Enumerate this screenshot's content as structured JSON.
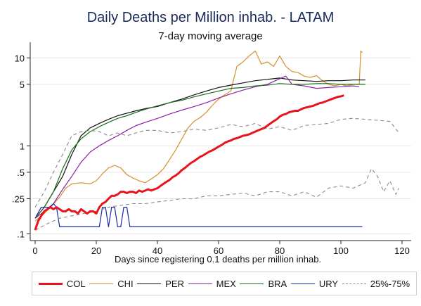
{
  "chart_data": {
    "type": "line",
    "title": "Daily Deaths per Million inhab. - LATAM",
    "subtitle": "7-day moving average",
    "xlabel": "Days since registering 0.1 deaths per million inhab.",
    "ylabel": "",
    "y_scale": "log",
    "xlim": [
      0,
      120
    ],
    "ylim": [
      0.09,
      14
    ],
    "x_ticks": [
      0,
      20,
      40,
      60,
      80,
      100,
      120
    ],
    "y_ticks": [
      {
        "value": 10,
        "label": "10"
      },
      {
        "value": 5,
        "label": "5"
      },
      {
        "value": 1,
        "label": "1"
      },
      {
        "value": 0.5,
        "label": ".5"
      },
      {
        "value": 0.25,
        "label": ".25"
      },
      {
        "value": 0.1,
        "label": ".1"
      }
    ],
    "grid": true,
    "legend_position": "bottom",
    "series": [
      {
        "name": "COL",
        "color": "#e8141c",
        "width": 3,
        "dash": "",
        "x": [
          0,
          1,
          2,
          3,
          4,
          5,
          6,
          7,
          8,
          9,
          10,
          11,
          12,
          13,
          14,
          15,
          16,
          17,
          18,
          19,
          20,
          21,
          22,
          23,
          24,
          25,
          26,
          27,
          28,
          29,
          30,
          31,
          32,
          33,
          34,
          35,
          36,
          37,
          38,
          39,
          40,
          41,
          42,
          43,
          44,
          45,
          46,
          47,
          48,
          49,
          50,
          51,
          52,
          53,
          54,
          55,
          56,
          57,
          58,
          59,
          60,
          61,
          62,
          63,
          64,
          65,
          66,
          67,
          68,
          69,
          70,
          71,
          72,
          73,
          74,
          75,
          76,
          77,
          78,
          79,
          80,
          81,
          82,
          83,
          84,
          85,
          86,
          87,
          88,
          89,
          90,
          91,
          92,
          93,
          94,
          95,
          96,
          97,
          98,
          99,
          100,
          101
        ],
        "y": [
          0.11,
          0.14,
          0.16,
          0.18,
          0.19,
          0.2,
          0.19,
          0.2,
          0.19,
          0.18,
          0.18,
          0.19,
          0.18,
          0.18,
          0.17,
          0.19,
          0.18,
          0.17,
          0.18,
          0.18,
          0.17,
          0.2,
          0.22,
          0.23,
          0.25,
          0.27,
          0.27,
          0.28,
          0.3,
          0.3,
          0.29,
          0.3,
          0.3,
          0.29,
          0.31,
          0.3,
          0.31,
          0.32,
          0.31,
          0.32,
          0.33,
          0.35,
          0.37,
          0.39,
          0.41,
          0.44,
          0.46,
          0.49,
          0.53,
          0.56,
          0.6,
          0.64,
          0.67,
          0.71,
          0.75,
          0.78,
          0.82,
          0.86,
          0.89,
          0.93,
          0.98,
          1.02,
          1.08,
          1.12,
          1.15,
          1.2,
          1.22,
          1.26,
          1.3,
          1.32,
          1.35,
          1.4,
          1.45,
          1.5,
          1.55,
          1.6,
          1.7,
          1.8,
          1.9,
          2.0,
          2.15,
          2.25,
          2.3,
          2.4,
          2.45,
          2.5,
          2.5,
          2.6,
          2.7,
          2.75,
          2.8,
          2.85,
          2.95,
          3.05,
          3.1,
          3.2,
          3.3,
          3.4,
          3.5,
          3.6,
          3.65,
          3.75
        ]
      },
      {
        "name": "CHI",
        "color": "#d4902a",
        "width": 1.2,
        "dash": "",
        "x": [
          0,
          3,
          5,
          8,
          10,
          12,
          15,
          18,
          20,
          22,
          24,
          26,
          28,
          30,
          32,
          34,
          36,
          38,
          40,
          42,
          44,
          46,
          48,
          50,
          52,
          54,
          56,
          58,
          60,
          62,
          64,
          66,
          68,
          70,
          72,
          74,
          76,
          78,
          80,
          82,
          84,
          86,
          88,
          90,
          92,
          94,
          96,
          98,
          100,
          102,
          104,
          106,
          106.5,
          107
        ],
        "y": [
          0.14,
          0.17,
          0.2,
          0.26,
          0.33,
          0.37,
          0.38,
          0.37,
          0.4,
          0.48,
          0.56,
          0.6,
          0.56,
          0.47,
          0.43,
          0.4,
          0.38,
          0.42,
          0.47,
          0.55,
          0.7,
          0.9,
          1.2,
          1.6,
          1.9,
          2.1,
          2.4,
          2.9,
          3.4,
          3.8,
          4.2,
          8.0,
          9.0,
          10.5,
          12.0,
          8.5,
          9.0,
          8.0,
          10.5,
          8.0,
          7.0,
          6.8,
          6.2,
          6.0,
          6.3,
          5.5,
          5.0,
          4.8,
          5.0,
          4.8,
          5.0,
          5.0,
          12.0,
          11.5
        ]
      },
      {
        "name": "PER",
        "color": "#111111",
        "width": 1.2,
        "dash": "",
        "x": [
          0,
          3,
          6,
          9,
          12,
          15,
          18,
          21,
          24,
          27,
          30,
          33,
          36,
          40,
          44,
          48,
          52,
          56,
          60,
          64,
          68,
          72,
          76,
          80,
          84,
          88,
          92,
          96,
          100,
          104,
          108
        ],
        "y": [
          0.15,
          0.2,
          0.3,
          0.45,
          0.8,
          1.3,
          1.6,
          1.8,
          2.0,
          2.2,
          2.35,
          2.5,
          2.65,
          2.8,
          3.1,
          3.4,
          3.8,
          4.2,
          4.6,
          4.9,
          5.2,
          5.5,
          5.7,
          5.9,
          5.6,
          5.5,
          5.4,
          5.5,
          5.5,
          5.6,
          5.6
        ]
      },
      {
        "name": "MEX",
        "color": "#8b22a8",
        "width": 1.2,
        "dash": "",
        "x": [
          0,
          3,
          6,
          9,
          12,
          15,
          18,
          21,
          24,
          27,
          30,
          33,
          36,
          40,
          44,
          48,
          52,
          56,
          60,
          64,
          68,
          72,
          76,
          80,
          82,
          84,
          88,
          92,
          96,
          100,
          104,
          106
        ],
        "y": [
          0.15,
          0.18,
          0.22,
          0.32,
          0.45,
          0.65,
          0.85,
          1.0,
          1.15,
          1.3,
          1.5,
          1.7,
          1.85,
          2.05,
          2.3,
          2.55,
          2.8,
          3.1,
          3.5,
          3.9,
          4.3,
          4.7,
          5.0,
          5.8,
          6.2,
          5.0,
          4.8,
          4.5,
          4.6,
          4.7,
          4.8,
          4.7
        ]
      },
      {
        "name": "BRA",
        "color": "#1b6e1b",
        "width": 1.2,
        "dash": "",
        "x": [
          0,
          3,
          6,
          9,
          12,
          15,
          18,
          21,
          24,
          27,
          30,
          33,
          36,
          40,
          44,
          48,
          52,
          56,
          60,
          64,
          68,
          72,
          76,
          80,
          84,
          88,
          92,
          96,
          100,
          104,
          108
        ],
        "y": [
          0.15,
          0.2,
          0.3,
          0.55,
          0.9,
          1.2,
          1.45,
          1.65,
          1.85,
          2.05,
          2.2,
          2.4,
          2.6,
          2.85,
          3.1,
          3.3,
          3.6,
          3.9,
          4.2,
          4.5,
          4.6,
          4.8,
          4.9,
          5.1,
          5.0,
          5.0,
          5.1,
          5.1,
          5.0,
          5.0,
          5.0
        ]
      },
      {
        "name": "URY",
        "color": "#1c2aa8",
        "width": 1.2,
        "dash": "",
        "x": [
          0,
          2,
          3,
          5,
          6,
          7,
          8,
          10,
          12,
          14,
          16,
          18,
          20,
          21,
          22,
          23,
          24,
          25,
          26,
          27,
          28,
          29,
          30,
          31,
          32,
          34,
          40,
          50,
          60,
          70,
          80,
          90,
          100,
          107
        ],
        "y": [
          0.15,
          0.2,
          0.2,
          0.2,
          0.22,
          0.2,
          0.12,
          0.12,
          0.12,
          0.12,
          0.12,
          0.12,
          0.12,
          0.12,
          0.2,
          0.2,
          0.12,
          0.2,
          0.2,
          0.12,
          0.12,
          0.2,
          0.2,
          0.12,
          0.12,
          0.12,
          0.12,
          0.12,
          0.12,
          0.12,
          0.12,
          0.12,
          0.12,
          0.12
        ]
      },
      {
        "name": "25%-75%",
        "color": "#8a8a8a",
        "width": 1.1,
        "dash": "5,4",
        "band": "upper",
        "x": [
          0,
          3,
          6,
          9,
          12,
          15,
          18,
          21,
          24,
          27,
          30,
          33,
          36,
          40,
          44,
          48,
          52,
          56,
          60,
          64,
          68,
          72,
          76,
          80,
          84,
          88,
          92,
          96,
          100,
          104,
          108,
          112,
          116,
          119
        ],
        "y": [
          0.2,
          0.3,
          0.5,
          0.8,
          1.3,
          1.45,
          1.5,
          1.45,
          1.3,
          1.4,
          1.3,
          1.4,
          1.5,
          1.5,
          1.4,
          1.45,
          1.55,
          1.5,
          1.6,
          1.75,
          1.65,
          1.8,
          1.55,
          1.65,
          1.5,
          1.7,
          1.75,
          1.8,
          2.0,
          2.05,
          2.0,
          1.95,
          1.9,
          1.4
        ]
      },
      {
        "name": "25%-75%",
        "color": "#8a8a8a",
        "width": 1.1,
        "dash": "5,4",
        "band": "lower",
        "x": [
          0,
          4,
          8,
          12,
          16,
          20,
          24,
          28,
          32,
          36,
          40,
          44,
          48,
          52,
          56,
          60,
          64,
          68,
          72,
          76,
          80,
          84,
          88,
          92,
          96,
          100,
          104,
          108,
          110,
          112,
          114,
          116,
          118,
          119
        ],
        "y": [
          0.11,
          0.13,
          0.15,
          0.16,
          0.17,
          0.18,
          0.2,
          0.21,
          0.22,
          0.22,
          0.23,
          0.24,
          0.25,
          0.25,
          0.27,
          0.27,
          0.28,
          0.29,
          0.27,
          0.3,
          0.3,
          0.27,
          0.3,
          0.26,
          0.33,
          0.35,
          0.33,
          0.38,
          0.55,
          0.45,
          0.3,
          0.4,
          0.28,
          0.33
        ]
      }
    ]
  }
}
